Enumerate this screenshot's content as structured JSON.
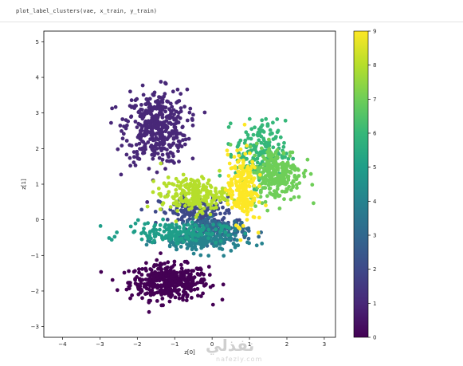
{
  "notebook": {
    "code_line": "plot_label_clusters(vae, x_train, y_train)"
  },
  "watermark": {
    "logo_text": "نفذلي",
    "site": "nafezly.com"
  },
  "chart_data": {
    "type": "scatter",
    "title": "",
    "xlabel": "z[0]",
    "ylabel": "z[1]",
    "xlim": [
      -4.5,
      3.3
    ],
    "ylim": [
      -3.3,
      5.3
    ],
    "x_ticks": [
      -4,
      -3,
      -2,
      -1,
      0,
      1,
      2,
      3
    ],
    "y_ticks": [
      -3,
      -2,
      -1,
      0,
      1,
      2,
      3,
      4,
      5
    ],
    "grid": false,
    "colormap": "viridis",
    "colorbar": {
      "label": "",
      "range": [
        0,
        9
      ],
      "ticks": [
        0,
        1,
        2,
        3,
        4,
        5,
        6,
        7,
        8,
        9
      ]
    },
    "series": [
      {
        "label_value": 0,
        "color": "#440154",
        "center": [
          -1.15,
          -1.75
        ],
        "spread": [
          0.95,
          0.45
        ],
        "count": 420
      },
      {
        "label_value": 1,
        "color": "#482878",
        "center": [
          -1.5,
          2.6
        ],
        "spread": [
          0.75,
          0.95
        ],
        "count": 420
      },
      {
        "label_value": 2,
        "color": "#3e4989",
        "center": [
          -0.4,
          0.2
        ],
        "spread": [
          0.9,
          0.4
        ],
        "count": 180
      },
      {
        "label_value": 3,
        "color": "#31688e",
        "center": [
          0.1,
          -0.3
        ],
        "spread": [
          0.8,
          0.3
        ],
        "count": 180
      },
      {
        "label_value": 4,
        "color": "#26828e",
        "center": [
          -0.3,
          -0.6
        ],
        "spread": [
          1.0,
          0.3
        ],
        "count": 160
      },
      {
        "label_value": 5,
        "color": "#1f9e89",
        "center": [
          -1.0,
          -0.35
        ],
        "spread": [
          1.2,
          0.25
        ],
        "count": 160
      },
      {
        "label_value": 6,
        "color": "#35b779",
        "center": [
          1.3,
          1.9
        ],
        "spread": [
          0.6,
          0.8
        ],
        "count": 180
      },
      {
        "label_value": 7,
        "color": "#6ece58",
        "center": [
          1.7,
          1.3
        ],
        "spread": [
          0.65,
          0.7
        ],
        "count": 260
      },
      {
        "label_value": 8,
        "color": "#b5de2b",
        "center": [
          -0.5,
          0.7
        ],
        "spread": [
          0.8,
          0.45
        ],
        "count": 220
      },
      {
        "label_value": 9,
        "color": "#fde725",
        "center": [
          0.8,
          0.9
        ],
        "spread": [
          0.35,
          0.9
        ],
        "count": 220
      }
    ]
  }
}
